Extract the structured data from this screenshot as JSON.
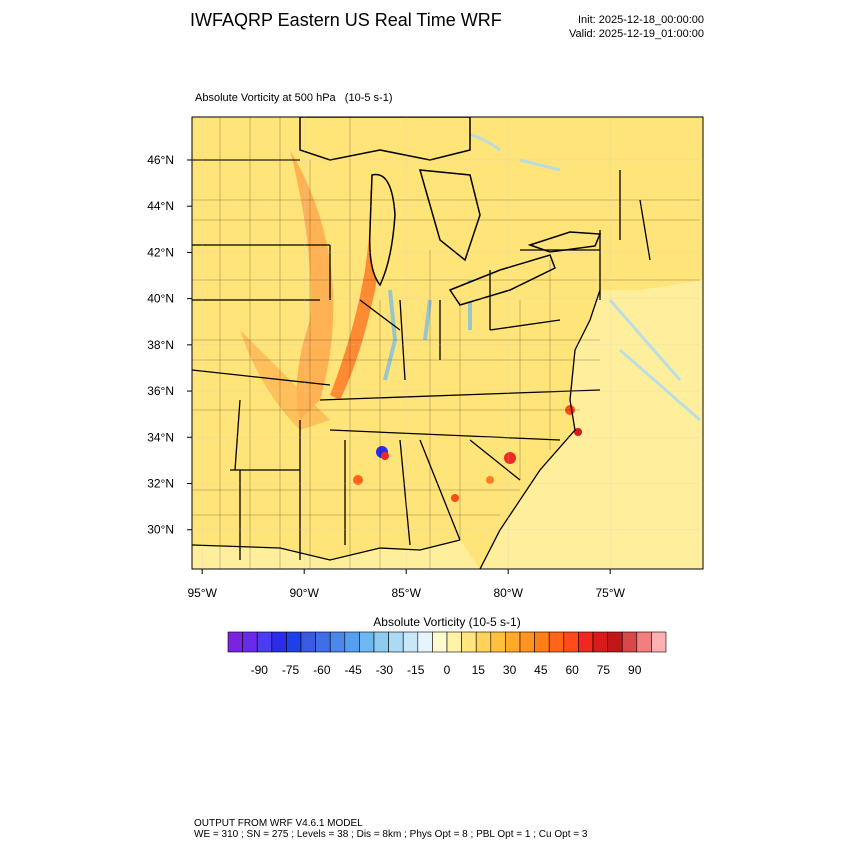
{
  "header": {
    "title": "IWFAQRP Eastern US Real Time WRF",
    "init": "Init: 2025-12-18_00:00:00",
    "valid": "Valid: 2025-12-19_01:00:00"
  },
  "map": {
    "title": "Absolute Vorticity at 500 hPa   (10-5 s-1)",
    "ylim": [
      28.3,
      47.86
    ],
    "yticks": [
      {
        "value": 46,
        "label": "46°N"
      },
      {
        "value": 44,
        "label": "44°N"
      },
      {
        "value": 42,
        "label": "42°N"
      },
      {
        "value": 40,
        "label": "40°N"
      },
      {
        "value": 38,
        "label": "38°N"
      },
      {
        "value": 36,
        "label": "36°N"
      },
      {
        "value": 34,
        "label": "34°N"
      },
      {
        "value": 32,
        "label": "32°N"
      },
      {
        "value": 30,
        "label": "30°N"
      }
    ],
    "xlim": [
      -95.5,
      -70.45
    ],
    "xticks": [
      {
        "value": -95,
        "label": "95°W"
      },
      {
        "value": -90,
        "label": "90°W"
      },
      {
        "value": -85,
        "label": "85°W"
      },
      {
        "value": -80,
        "label": "80°W"
      },
      {
        "value": -75,
        "label": "75°W"
      }
    ]
  },
  "colorbar": {
    "title": "Absolute Vorticity  (10-5 s-1)",
    "lim": [
      -105,
      105
    ],
    "ticks": [
      -90,
      -75,
      -60,
      -45,
      -30,
      -15,
      0,
      15,
      30,
      45,
      60,
      75,
      90
    ],
    "colors": [
      "#7b24e0",
      "#6a2be8",
      "#4b3ef0",
      "#2b2be8",
      "#1f3fe8",
      "#3a5ae0",
      "#3f6fe6",
      "#4a88ea",
      "#55a0ee",
      "#6db8f0",
      "#8ecbf0",
      "#aadaf4",
      "#c8e8f8",
      "#e6f4fb",
      "#fffbd0",
      "#fff3a8",
      "#ffe680",
      "#ffd35a",
      "#ffc040",
      "#ffaa2a",
      "#ff9520",
      "#ff7e18",
      "#ff6418",
      "#ff4a1a",
      "#f02820",
      "#d81a1a",
      "#c01818",
      "#d84848",
      "#f08080",
      "#ffb0b0"
    ]
  },
  "footer": {
    "line1": "OUTPUT FROM WRF V4.6.1 MODEL",
    "line2": "WE = 310 ; SN = 275 ; Levels = 38 ; Dis = 8km ; Phys Opt = 8 ; PBL Opt = 1 ; Cu Opt = 3"
  }
}
